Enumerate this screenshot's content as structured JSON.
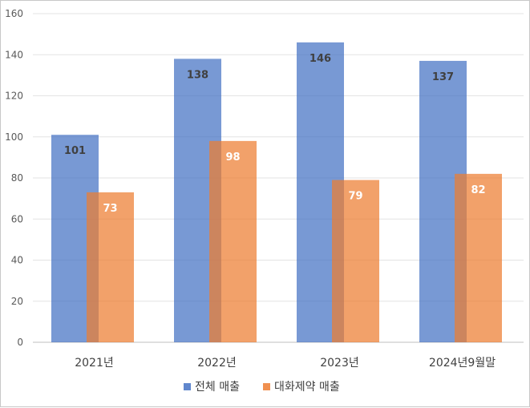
{
  "chart_data": {
    "type": "bar",
    "categories": [
      "2021년",
      "2022년",
      "2023년",
      "2024년9월말"
    ],
    "series": [
      {
        "name": "전체 매출",
        "values": [
          101,
          138,
          146,
          137
        ],
        "color": "#4472C4",
        "label_color": "#404040"
      },
      {
        "name": "대화제약 매출",
        "values": [
          73,
          98,
          79,
          82
        ],
        "color": "#ED7D31",
        "label_color": "#ffffff"
      }
    ],
    "yticks": [
      0,
      20,
      40,
      60,
      80,
      100,
      120,
      140,
      160
    ],
    "ylim": [
      0,
      160
    ],
    "grid": true,
    "legend": "bottom",
    "bar_overlap": true,
    "bar_opacity": 0.72
  }
}
